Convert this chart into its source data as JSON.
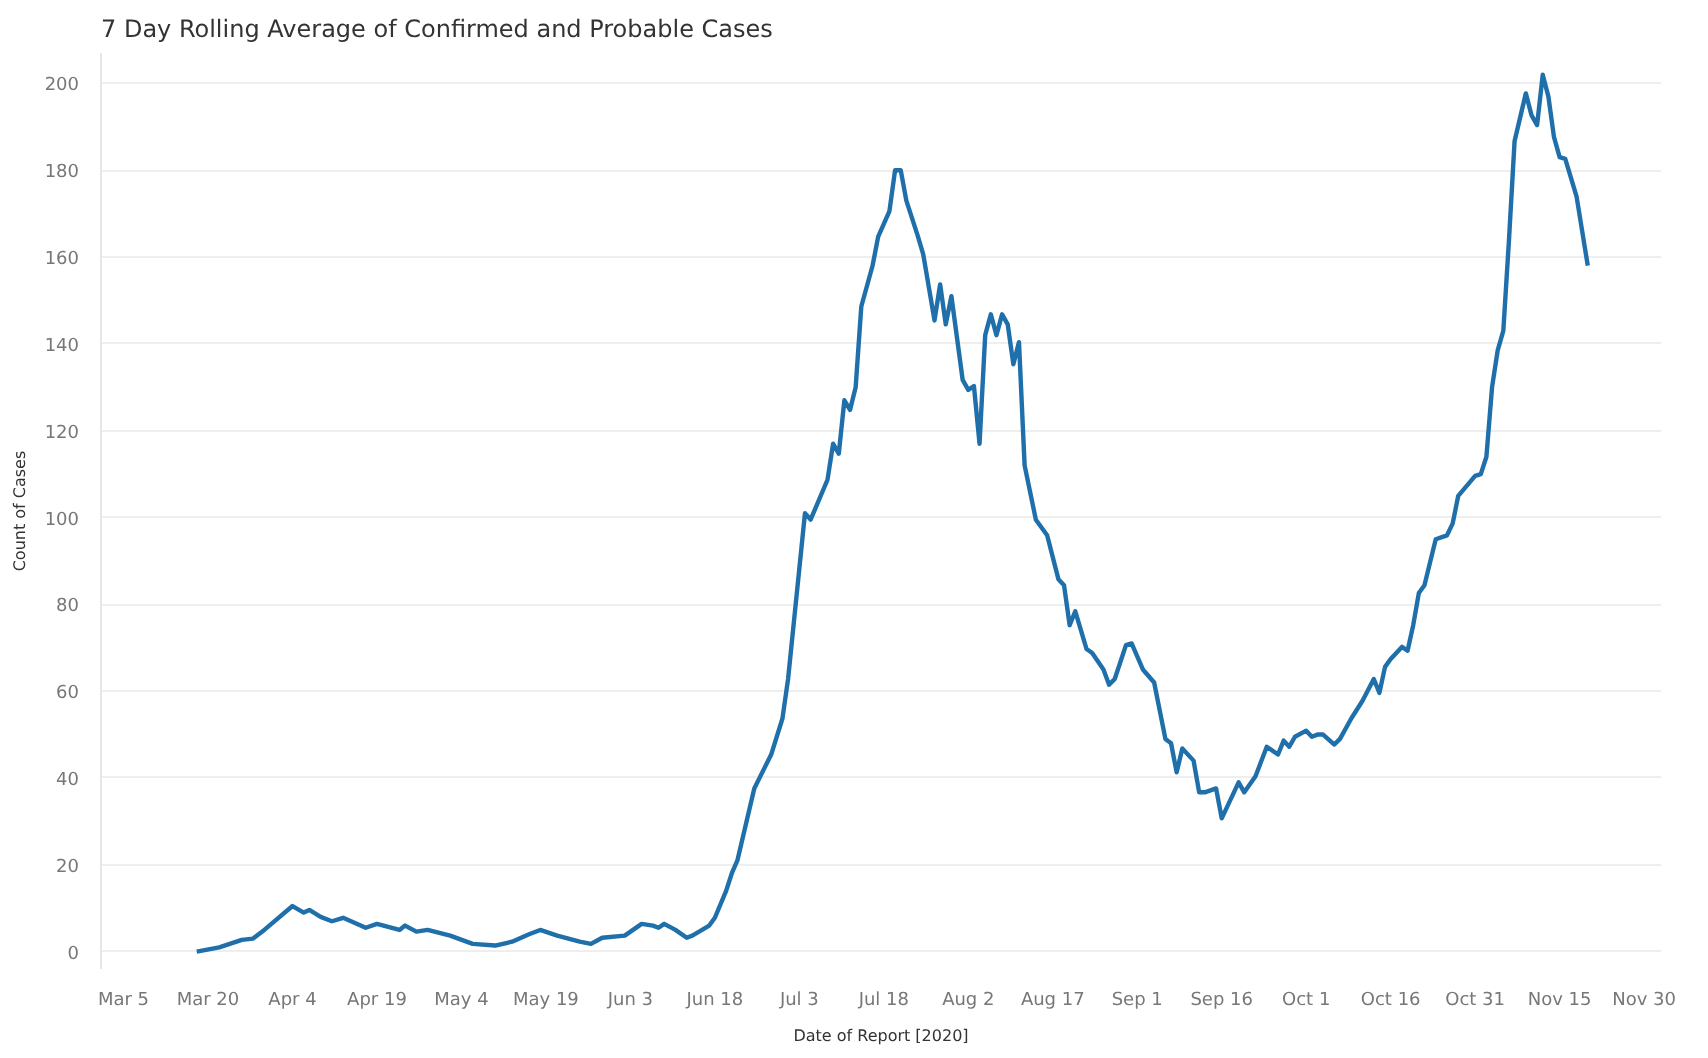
{
  "chart_data": {
    "type": "line",
    "title": "7 Day Rolling Average of Confirmed and Probable Cases",
    "xlabel": "Date of Report [2020]",
    "ylabel": "Count of Cases",
    "x": [
      "2020-03-18",
      "2020-03-22",
      "2020-03-26",
      "2020-03-28",
      "2020-03-30",
      "2020-04-04",
      "2020-04-06",
      "2020-04-07",
      "2020-04-09",
      "2020-04-11",
      "2020-04-13",
      "2020-04-17",
      "2020-04-19",
      "2020-04-23",
      "2020-04-24",
      "2020-04-26",
      "2020-04-28",
      "2020-05-02",
      "2020-05-06",
      "2020-05-10",
      "2020-05-13",
      "2020-05-16",
      "2020-05-18",
      "2020-05-21",
      "2020-05-25",
      "2020-05-27",
      "2020-05-29",
      "2020-06-02",
      "2020-06-05",
      "2020-06-07",
      "2020-06-08",
      "2020-06-09",
      "2020-06-11",
      "2020-06-13",
      "2020-06-14",
      "2020-06-17",
      "2020-06-18",
      "2020-06-20",
      "2020-06-21",
      "2020-06-22",
      "2020-06-25",
      "2020-06-28",
      "2020-06-30",
      "2020-07-01",
      "2020-07-04",
      "2020-07-05",
      "2020-07-08",
      "2020-07-09",
      "2020-07-10",
      "2020-07-11",
      "2020-07-12",
      "2020-07-13",
      "2020-07-14",
      "2020-07-16",
      "2020-07-17",
      "2020-07-19",
      "2020-07-20",
      "2020-07-21",
      "2020-07-22",
      "2020-07-24",
      "2020-07-25",
      "2020-07-27",
      "2020-07-28",
      "2020-07-29",
      "2020-07-30",
      "2020-08-01",
      "2020-08-02",
      "2020-08-03",
      "2020-08-04",
      "2020-08-05",
      "2020-08-06",
      "2020-08-07",
      "2020-08-08",
      "2020-08-09",
      "2020-08-10",
      "2020-08-11",
      "2020-08-12",
      "2020-08-14",
      "2020-08-16",
      "2020-08-18",
      "2020-08-19",
      "2020-08-20",
      "2020-08-21",
      "2020-08-23",
      "2020-08-24",
      "2020-08-26",
      "2020-08-27",
      "2020-08-28",
      "2020-08-30",
      "2020-08-31",
      "2020-09-02",
      "2020-09-04",
      "2020-09-06",
      "2020-09-07",
      "2020-09-08",
      "2020-09-09",
      "2020-09-11",
      "2020-09-12",
      "2020-09-13",
      "2020-09-15",
      "2020-09-16",
      "2020-09-19",
      "2020-09-20",
      "2020-09-22",
      "2020-09-24",
      "2020-09-26",
      "2020-09-27",
      "2020-09-28",
      "2020-09-29",
      "2020-10-01",
      "2020-10-02",
      "2020-10-03",
      "2020-10-04",
      "2020-10-06",
      "2020-10-07",
      "2020-10-09",
      "2020-10-11",
      "2020-10-13",
      "2020-10-14",
      "2020-10-15",
      "2020-10-16",
      "2020-10-18",
      "2020-10-19",
      "2020-10-20",
      "2020-10-21",
      "2020-10-22",
      "2020-10-24",
      "2020-10-26",
      "2020-10-27",
      "2020-10-28",
      "2020-10-31",
      "2020-11-01",
      "2020-11-02",
      "2020-11-03",
      "2020-11-04",
      "2020-11-05",
      "2020-11-06",
      "2020-11-07",
      "2020-11-09",
      "2020-11-10",
      "2020-11-11",
      "2020-11-12",
      "2020-11-13",
      "2020-11-14",
      "2020-11-15",
      "2020-11-16",
      "2020-11-18",
      "2020-11-20"
    ],
    "series": [
      {
        "color": "#1f6faa",
        "values": [
          0,
          1,
          2.7,
          3,
          5,
          10.5,
          9,
          9.6,
          8,
          7,
          7.8,
          5.5,
          6.4,
          5,
          6,
          4.6,
          5,
          3.7,
          1.8,
          1.4,
          2.3,
          4,
          5,
          3.7,
          2.3,
          1.8,
          3.2,
          3.7,
          6.4,
          6,
          5.5,
          6.4,
          5,
          3.2,
          3.7,
          6,
          7.8,
          14,
          18,
          21,
          37.6,
          45.4,
          53.7,
          62.8,
          101,
          99.5,
          108.7,
          117,
          114.7,
          127,
          124.8,
          130,
          148.6,
          158,
          164.7,
          170.6,
          180,
          180,
          173,
          165,
          160.6,
          145.4,
          153.7,
          144.5,
          151,
          131.7,
          129.4,
          130.3,
          117,
          142,
          146.8,
          142,
          146.8,
          144.5,
          135.3,
          140.4,
          112,
          99.5,
          95.9,
          85.8,
          84.4,
          75.2,
          78.4,
          69.7,
          68.8,
          65,
          61.5,
          62.8,
          70.6,
          71,
          65,
          62,
          49,
          48,
          41.3,
          46.8,
          44,
          36.7,
          36.7,
          37.6,
          30.7,
          39,
          36.7,
          40.4,
          47.2,
          45.4,
          48.6,
          47.2,
          49.5,
          50.9,
          49.5,
          50,
          50,
          47.7,
          49,
          53.7,
          57.8,
          62.8,
          59.6,
          65.6,
          67.4,
          70.2,
          69.3,
          75.2,
          82.6,
          84.4,
          95,
          95.9,
          98.6,
          105,
          109.6,
          110,
          114,
          130,
          138.5,
          143,
          163.8,
          186.7,
          197.7,
          192.7,
          190.4,
          202,
          197,
          187.6,
          183,
          182.6,
          174,
          158
        ]
      }
    ],
    "xlim": [
      "2020-03-01",
      "2020-12-03"
    ],
    "xticks": [
      {
        "value": "2020-03-05",
        "label": "Mar 5"
      },
      {
        "value": "2020-03-20",
        "label": "Mar 20"
      },
      {
        "value": "2020-04-04",
        "label": "Apr 4"
      },
      {
        "value": "2020-04-19",
        "label": "Apr 19"
      },
      {
        "value": "2020-05-04",
        "label": "May 4"
      },
      {
        "value": "2020-05-19",
        "label": "May 19"
      },
      {
        "value": "2020-06-03",
        "label": "Jun 3"
      },
      {
        "value": "2020-06-18",
        "label": "Jun 18"
      },
      {
        "value": "2020-07-03",
        "label": "Jul 3"
      },
      {
        "value": "2020-07-18",
        "label": "Jul 18"
      },
      {
        "value": "2020-08-02",
        "label": "Aug 2"
      },
      {
        "value": "2020-08-17",
        "label": "Aug 17"
      },
      {
        "value": "2020-09-01",
        "label": "Sep 1"
      },
      {
        "value": "2020-09-16",
        "label": "Sep 16"
      },
      {
        "value": "2020-10-01",
        "label": "Oct 1"
      },
      {
        "value": "2020-10-16",
        "label": "Oct 16"
      },
      {
        "value": "2020-10-31",
        "label": "Oct 31"
      },
      {
        "value": "2020-11-15",
        "label": "Nov 15"
      },
      {
        "value": "2020-11-30",
        "label": "Nov 30"
      }
    ],
    "ylim": [
      -4,
      207
    ],
    "yticks": [
      0,
      20,
      40,
      60,
      80,
      100,
      120,
      140,
      160,
      180,
      200
    ],
    "grid": "y",
    "line_style": "solid"
  }
}
